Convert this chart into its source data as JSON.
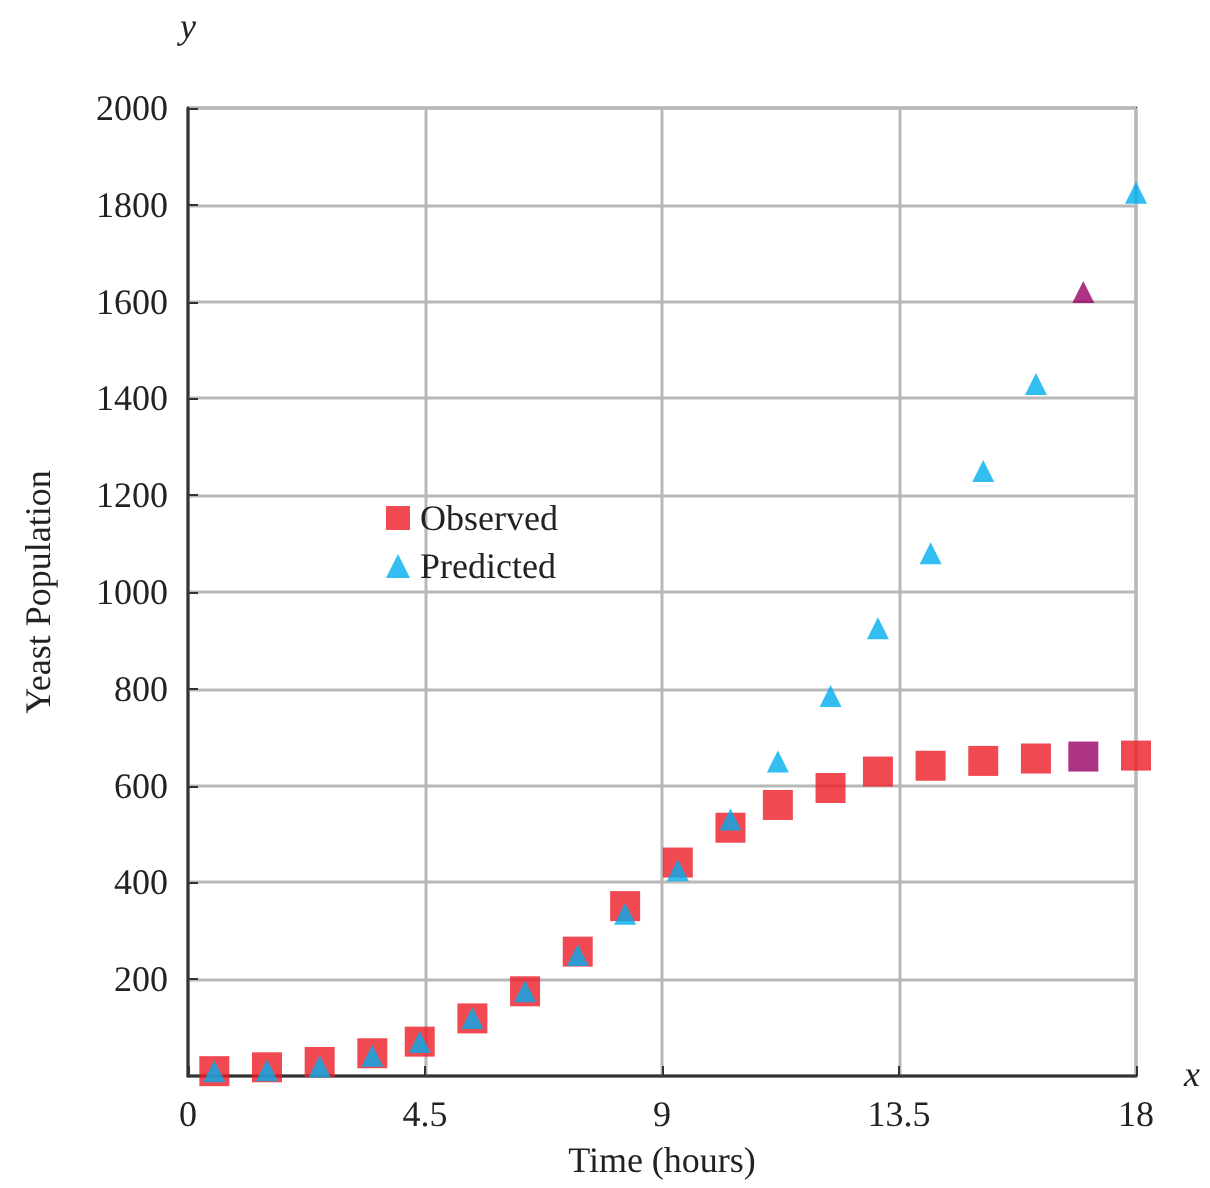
{
  "chart_data": {
    "type": "scatter",
    "xlabel": "Time (hours)",
    "ylabel": "Yeast Population",
    "annotations": [
      "y",
      "x"
    ],
    "x": [
      0.5,
      1.5,
      2.5,
      3.5,
      4.4,
      5.4,
      6.4,
      7.4,
      8.3,
      9.3,
      10.3,
      11.2,
      12.2,
      13.1,
      14.1,
      15.1,
      16.1,
      17.0,
      18.0
    ],
    "series": [
      {
        "name": "Observed",
        "color": "#ee1c25",
        "marker": "square",
        "colors": [
          "#ee1c25",
          "#ee1c25",
          "#ee1c25",
          "#ee1c25",
          "#ee1c25",
          "#ee1c25",
          "#ee1c25",
          "#ee1c25",
          "#ee1c25",
          "#ee1c25",
          "#ee1c25",
          "#ee1c25",
          "#ee1c25",
          "#ee1c25",
          "#ee1c25",
          "#ee1c25",
          "#ee1c25",
          "#990066",
          "#ee1c25"
        ],
        "values": [
          10,
          18,
          29,
          47,
          71,
          119,
          175,
          257,
          351,
          441,
          513,
          560,
          595,
          629,
          641,
          651,
          656,
          660,
          662
        ]
      },
      {
        "name": "Predicted",
        "color": "#00aeef",
        "marker": "triangle",
        "colors": [
          "#00aeef",
          "#00aeef",
          "#00aeef",
          "#00aeef",
          "#00aeef",
          "#00aeef",
          "#00aeef",
          "#00aeef",
          "#00aeef",
          "#00aeef",
          "#00aeef",
          "#00aeef",
          "#00aeef",
          "#00aeef",
          "#00aeef",
          "#00aeef",
          "#00aeef",
          "#990066",
          "#00aeef"
        ],
        "values": [
          10,
          12,
          20,
          42,
          70,
          120,
          175,
          250,
          335,
          425,
          530,
          650,
          785,
          925,
          1080,
          1250,
          1430,
          1620,
          1825
        ]
      }
    ],
    "xlim": [
      0,
      18
    ],
    "xticks": [
      0,
      4.5,
      9,
      13.5,
      18
    ],
    "ylim": [
      0,
      2000
    ],
    "yticks": [
      200,
      400,
      600,
      800,
      1000,
      1200,
      1400,
      1600,
      1800,
      2000
    ],
    "grid": true,
    "legend": "left"
  }
}
